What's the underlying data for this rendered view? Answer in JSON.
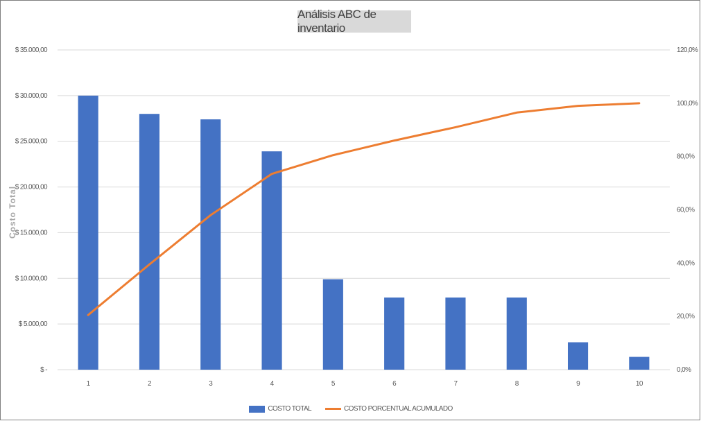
{
  "chart_data": {
    "type": "bar",
    "title": "Análisis ABC de inventario",
    "ylabel": "Costo Total",
    "y2label": "",
    "categories": [
      "1",
      "2",
      "3",
      "4",
      "5",
      "6",
      "7",
      "8",
      "9",
      "10"
    ],
    "ylim": [
      0,
      35000
    ],
    "y2lim": [
      0,
      1.2
    ],
    "y_ticks": [
      {
        "value": 0,
        "label": "$ -"
      },
      {
        "value": 5000,
        "label": "$ 5.000,00"
      },
      {
        "value": 10000,
        "label": "$ 10.000,00"
      },
      {
        "value": 15000,
        "label": "$ 15.000,00"
      },
      {
        "value": 20000,
        "label": "$ 20.000,00"
      },
      {
        "value": 25000,
        "label": "$ 25.000,00"
      },
      {
        "value": 30000,
        "label": "$ 30.000,00"
      },
      {
        "value": 35000,
        "label": "$ 35.000,00"
      }
    ],
    "y2_ticks": [
      {
        "value": 0,
        "label": "0,0%"
      },
      {
        "value": 0.2,
        "label": "20,0%"
      },
      {
        "value": 0.4,
        "label": "40,0%"
      },
      {
        "value": 0.6,
        "label": "60,0%"
      },
      {
        "value": 0.8,
        "label": "80,0%"
      },
      {
        "value": 1.0,
        "label": "100,0%"
      },
      {
        "value": 1.2,
        "label": "120,0%"
      }
    ],
    "grid": true,
    "legend_position": "bottom",
    "series": [
      {
        "name": "COSTO TOTAL",
        "type": "bar",
        "axis": "left",
        "color": "#4472c4",
        "values": [
          30000,
          28000,
          27400,
          23900,
          9900,
          7900,
          7900,
          7900,
          3000,
          1400
        ]
      },
      {
        "name": "COSTO PORCENTUAL ACUMULADO",
        "type": "line",
        "axis": "right",
        "color": "#ed7d31",
        "values": [
          0.205,
          0.395,
          0.58,
          0.735,
          0.805,
          0.86,
          0.91,
          0.965,
          0.99,
          1.0
        ]
      }
    ]
  }
}
